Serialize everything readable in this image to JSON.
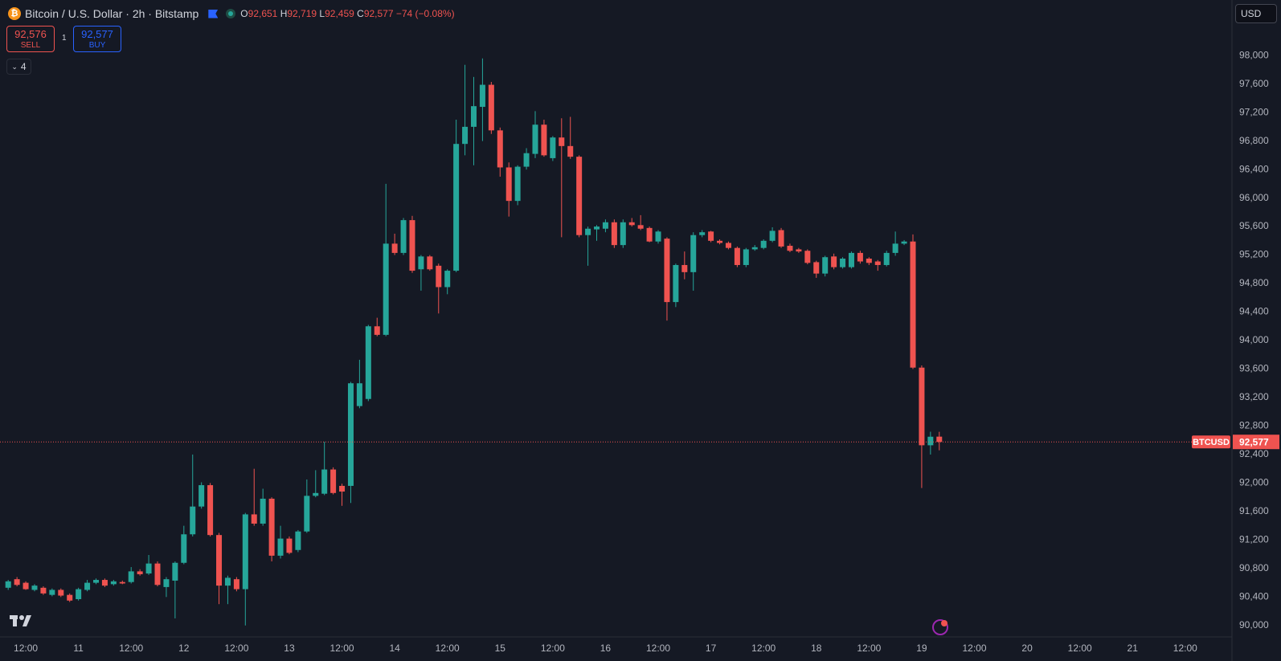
{
  "header": {
    "symbol_title": "Bitcoin / U.S. Dollar · 2h · Bitstamp",
    "ohlc": [
      {
        "key": "O",
        "value": "92,651"
      },
      {
        "key": "H",
        "value": "92,719"
      },
      {
        "key": "L",
        "value": "92,459"
      },
      {
        "key": "C",
        "value": "92,577"
      }
    ],
    "change": "−74 (−0.08%)"
  },
  "trade": {
    "sell_price": "92,576",
    "sell_label": "SELL",
    "spread": "1",
    "buy_price": "92,577",
    "buy_label": "BUY"
  },
  "indicators_count": "4",
  "currency": "USD",
  "chart_data": {
    "type": "candlestick",
    "up_color": "#26a69a",
    "down_color": "#ef5350",
    "grid": false,
    "categories": [
      null,
      null,
      "12:00",
      null,
      null,
      null,
      null,
      null,
      "11",
      null,
      null,
      null,
      null,
      null,
      "12:00",
      null,
      null,
      null,
      null,
      null,
      "12",
      null,
      null,
      null,
      null,
      null,
      "12:00",
      null,
      null,
      null,
      null,
      null,
      "13",
      null,
      null,
      null,
      null,
      null,
      "12:00",
      null,
      null,
      null,
      null,
      null,
      "14",
      null,
      null,
      null,
      null,
      null,
      "12:00",
      null,
      null,
      null,
      null,
      null,
      "15",
      null,
      null,
      null,
      null,
      null,
      "12:00",
      null,
      null,
      null,
      null,
      null,
      "16",
      null,
      null,
      null,
      null,
      null,
      "12:00",
      null,
      null,
      null,
      null,
      null,
      "17",
      null,
      null,
      null,
      null,
      null,
      "12:00",
      null,
      null,
      null,
      null,
      null,
      "18",
      null,
      null,
      null,
      null,
      null,
      "12:00",
      null,
      null,
      null,
      null,
      null,
      "19",
      null,
      null,
      null,
      null,
      null,
      "12:00",
      null,
      null,
      null,
      null,
      null,
      "20",
      null,
      null,
      null,
      null,
      null,
      "12:00",
      null,
      null,
      null,
      null,
      null,
      "21",
      null,
      null,
      null,
      null,
      null,
      "12:00"
    ],
    "open": [
      90530,
      90650,
      90600,
      90500,
      90530,
      90430,
      90500,
      90430,
      90370,
      90500,
      90600,
      90640,
      90580,
      90610,
      90610,
      90760,
      90730,
      90870,
      90540,
      90630,
      90880,
      91280,
      91670,
      91970,
      91270,
      90560,
      90650,
      90510,
      91560,
      91430,
      91780,
      90980,
      91220,
      91060,
      91320,
      91820,
      91850,
      92190,
      91960,
      91960,
      93080,
      93180,
      94200,
      94080,
      95360,
      95230,
      95690,
      95000,
      95180,
      95050,
      94750,
      94980,
      96760,
      97000,
      97280,
      97590,
      96950,
      96430,
      95960,
      96440,
      96620,
      97030,
      96560,
      96850,
      96730,
      96580,
      95480,
      95560,
      95570,
      95660,
      95340,
      95660,
      95620,
      95580,
      95390,
      95430,
      94540,
      95060,
      94960,
      95480,
      95530,
      95400,
      95370,
      95300,
      95060,
      95280,
      95300,
      95400,
      95550,
      95330,
      95280,
      95260,
      95100,
      94940,
      95180,
      95030,
      95030,
      95230,
      95150,
      95110,
      95060,
      95230,
      95360,
      95390,
      93620,
      92530,
      92651,
      null,
      null,
      null,
      null,
      null,
      null,
      null,
      null,
      null,
      null,
      null,
      null,
      null,
      null,
      null,
      null,
      null,
      null,
      null,
      null,
      null,
      null,
      null,
      null,
      null,
      null,
      null,
      null
    ],
    "high": [
      90640,
      90680,
      90620,
      90580,
      90550,
      90520,
      90520,
      90450,
      90530,
      90640,
      90660,
      90660,
      90640,
      90630,
      90820,
      90790,
      90990,
      90900,
      90680,
      90900,
      91400,
      92400,
      92010,
      92000,
      91300,
      90700,
      90680,
      91580,
      92200,
      91920,
      91800,
      91400,
      91250,
      91340,
      92050,
      92180,
      92580,
      92220,
      91990,
      93420,
      93730,
      94220,
      94320,
      96200,
      95500,
      95720,
      95750,
      95200,
      95200,
      95080,
      95000,
      97100,
      97870,
      97700,
      97960,
      97630,
      96990,
      96500,
      96460,
      96700,
      97220,
      97100,
      96870,
      97120,
      97140,
      96600,
      95600,
      95620,
      95700,
      95700,
      95700,
      95720,
      95760,
      95600,
      95550,
      95450,
      95080,
      95250,
      95520,
      95550,
      95540,
      95420,
      95390,
      95320,
      95300,
      95340,
      95420,
      95590,
      95580,
      95360,
      95300,
      95280,
      95120,
      95190,
      95220,
      95170,
      95250,
      95260,
      95170,
      95130,
      95260,
      95530,
      95410,
      95490,
      93650,
      92720,
      92719,
      null,
      null,
      null,
      null,
      null,
      null,
      null,
      null,
      null,
      null,
      null,
      null,
      null,
      null,
      null,
      null,
      null,
      null,
      null,
      null,
      null,
      null,
      null,
      null,
      null,
      null,
      null,
      null
    ],
    "low": [
      90500,
      90550,
      90500,
      90480,
      90430,
      90410,
      90400,
      90330,
      90350,
      90480,
      90580,
      90540,
      90560,
      90580,
      90590,
      90700,
      90710,
      90550,
      90400,
      90100,
      90860,
      91250,
      91640,
      91250,
      90300,
      90300,
      90480,
      90000,
      91400,
      91400,
      90900,
      90940,
      91000,
      91030,
      91300,
      91800,
      91830,
      91840,
      91680,
      91720,
      93050,
      93150,
      94060,
      94060,
      95200,
      95200,
      94950,
      94700,
      94980,
      94380,
      94650,
      94960,
      96600,
      96460,
      96800,
      96900,
      96300,
      95740,
      95900,
      96400,
      96560,
      96580,
      96520,
      95450,
      96550,
      95450,
      95050,
      95400,
      95520,
      95300,
      95300,
      95600,
      95550,
      95380,
      95360,
      94280,
      94470,
      94860,
      94700,
      95450,
      95380,
      95350,
      95280,
      95030,
      95030,
      95260,
      95280,
      95380,
      95300,
      95240,
      95230,
      95070,
      94880,
      94900,
      95000,
      95010,
      95010,
      95080,
      95060,
      94980,
      95040,
      95190,
      95340,
      93600,
      91930,
      92400,
      92459,
      null,
      null,
      null,
      null,
      null,
      null,
      null,
      null,
      null,
      null,
      null,
      null,
      null,
      null,
      null,
      null,
      null,
      null,
      null,
      null,
      null,
      null,
      null,
      null,
      null,
      null,
      null,
      null
    ],
    "close": [
      90620,
      90570,
      90510,
      90560,
      90450,
      90500,
      90420,
      90350,
      90510,
      90600,
      90640,
      90560,
      90620,
      90590,
      90760,
      90720,
      90870,
      90570,
      90650,
      90880,
      91280,
      91670,
      91970,
      91270,
      90560,
      90670,
      90510,
      91560,
      91430,
      91780,
      90980,
      91220,
      91020,
      91320,
      91820,
      91860,
      92190,
      91860,
      91880,
      93400,
      93400,
      94200,
      94080,
      95360,
      95230,
      95690,
      94980,
      95180,
      95000,
      94750,
      94980,
      96760,
      97000,
      97290,
      97590,
      96950,
      96430,
      95960,
      96440,
      96630,
      97030,
      96600,
      96850,
      96730,
      96580,
      95480,
      95570,
      95600,
      95660,
      95340,
      95660,
      95620,
      95570,
      95390,
      95530,
      94540,
      95060,
      94960,
      95480,
      95520,
      95400,
      95370,
      95300,
      95060,
      95280,
      95310,
      95400,
      95540,
      95320,
      95260,
      95250,
      95090,
      94940,
      95170,
      95030,
      95150,
      95230,
      95110,
      95090,
      95060,
      95230,
      95360,
      95390,
      93620,
      92530,
      92650,
      92577,
      null,
      null,
      null,
      null,
      null,
      null,
      null,
      null,
      null,
      null,
      null,
      null,
      null,
      null,
      null,
      null,
      null,
      null,
      null,
      null,
      null,
      null,
      null,
      null,
      null,
      null,
      null,
      null
    ],
    "ylim": [
      89840,
      98780
    ],
    "yticks": [
      {
        "value": 90000,
        "label": "90,000"
      },
      {
        "value": 90400,
        "label": "90,400"
      },
      {
        "value": 90800,
        "label": "90,800"
      },
      {
        "value": 91200,
        "label": "91,200"
      },
      {
        "value": 91600,
        "label": "91,600"
      },
      {
        "value": 92000,
        "label": "92,000"
      },
      {
        "value": 92400,
        "label": "92,400"
      },
      {
        "value": 92800,
        "label": "92,800"
      },
      {
        "value": 93200,
        "label": "93,200"
      },
      {
        "value": 93600,
        "label": "93,600"
      },
      {
        "value": 94000,
        "label": "94,000"
      },
      {
        "value": 94400,
        "label": "94,400"
      },
      {
        "value": 94800,
        "label": "94,800"
      },
      {
        "value": 95200,
        "label": "95,200"
      },
      {
        "value": 95600,
        "label": "95,600"
      },
      {
        "value": 96000,
        "label": "96,000"
      },
      {
        "value": 96400,
        "label": "96,400"
      },
      {
        "value": 96800,
        "label": "96,800"
      },
      {
        "value": 97200,
        "label": "97,200"
      },
      {
        "value": 97600,
        "label": "97,600"
      },
      {
        "value": 98000,
        "label": "98,000"
      }
    ],
    "last_price": {
      "value": 92577,
      "label": "92,577"
    },
    "last_price_symbol": "BTCUSD"
  }
}
